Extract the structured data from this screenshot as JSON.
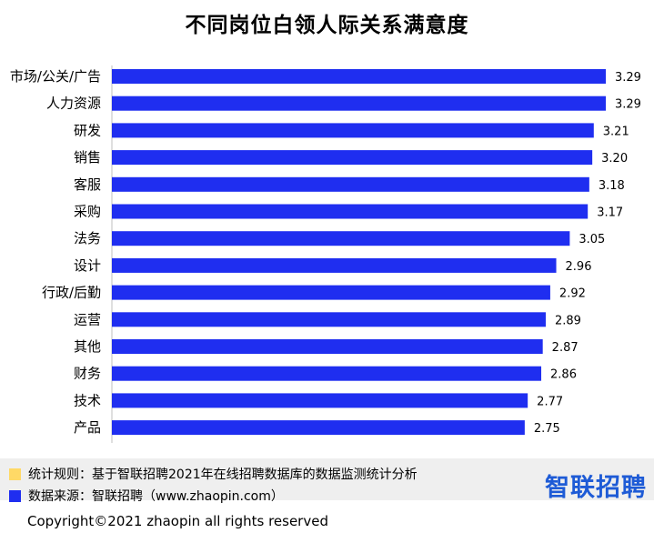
{
  "title": "不同岗位白领人际关系满意度",
  "chart_data": {
    "type": "bar",
    "orientation": "horizontal",
    "title": "不同岗位白领人际关系满意度",
    "xlabel": "",
    "ylabel": "",
    "categories": [
      "市场/公关/广告",
      "人力资源",
      "研发",
      "销售",
      "客服",
      "采购",
      "法务",
      "设计",
      "行政/后勤",
      "运营",
      "其他",
      "财务",
      "技术",
      "产品"
    ],
    "values": [
      3.29,
      3.29,
      3.21,
      3.2,
      3.18,
      3.17,
      3.05,
      2.96,
      2.92,
      2.89,
      2.87,
      2.86,
      2.77,
      2.75
    ],
    "value_labels": [
      "3.29",
      "3.29",
      "3.21",
      "3.20",
      "3.18",
      "3.17",
      "3.05",
      "2.96",
      "2.92",
      "2.89",
      "2.87",
      "2.86",
      "2.77",
      "2.75"
    ],
    "bar_color": "#1f2ef0",
    "grid": false,
    "legend": "none"
  },
  "notes": {
    "rule_label": "统计规则：基于智联招聘2021年在线招聘数据库的数据监测统计分析",
    "rule_color": "#ffd966",
    "source_label": "数据来源：智联招聘（www.zhaopin.com）",
    "source_color": "#1f2ef0"
  },
  "logo_text": "智联招聘",
  "copyright": "Copyright©2021 zhaopin all rights reserved"
}
